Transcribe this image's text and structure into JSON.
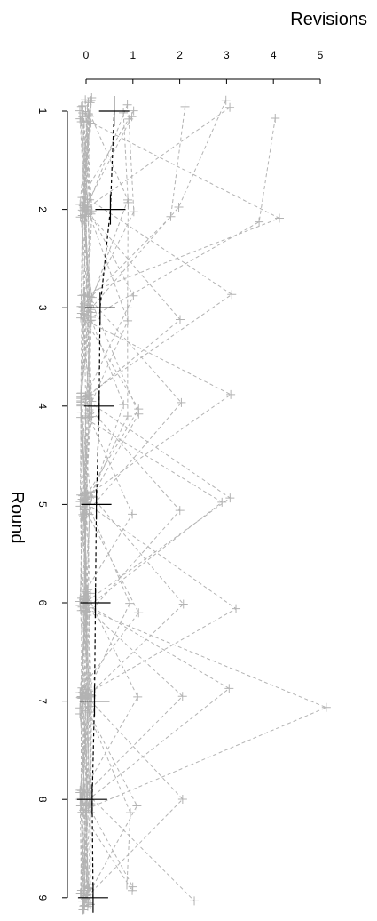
{
  "chart_data": {
    "type": "line",
    "orientation": "rotated",
    "xlabel": "Round",
    "ylabel": "Revisions",
    "x_ticks": [
      1,
      2,
      3,
      4,
      5,
      6,
      7,
      8,
      9
    ],
    "y_ticks": [
      0,
      1,
      2,
      3,
      4,
      5
    ],
    "xlim": [
      0.6,
      9.15
    ],
    "ylim": [
      0,
      5
    ],
    "grid": false,
    "mean_series": {
      "x": [
        1,
        2,
        3,
        4,
        5,
        6,
        7,
        8,
        9
      ],
      "values": [
        0.6,
        0.52,
        0.3,
        0.28,
        0.22,
        0.2,
        0.18,
        0.13,
        0.15
      ]
    },
    "individual_series": [
      {
        "values": [
          0.8,
          1.0,
          0.9,
          1.0,
          0.0,
          0.0,
          0.0,
          0.0,
          0.0
        ]
      },
      {
        "values": [
          1.0,
          0.0,
          0.0,
          0.9,
          0.0,
          2.1,
          0.0,
          0.0,
          1.0
        ]
      },
      {
        "values": [
          2.1,
          1.9,
          0.0,
          0.0,
          0.0,
          0.0,
          0.0,
          0.0,
          0.0
        ]
      },
      {
        "values": [
          3.0,
          2.1,
          0.0,
          0.0,
          0.0,
          0.0,
          0.0,
          0.0,
          0.0
        ]
      },
      {
        "values": [
          4.1,
          3.6,
          0.0,
          0.0,
          0.0,
          0.0,
          0.0,
          0.0,
          0.0
        ]
      },
      {
        "values": [
          3.2,
          0.0,
          1.0,
          0.0,
          0.0,
          0.0,
          0.0,
          0.0,
          0.0
        ]
      },
      {
        "values": [
          0.0,
          4.2,
          0.0,
          0.0,
          0.0,
          0.0,
          0.0,
          0.0,
          0.0
        ]
      },
      {
        "values": [
          0.0,
          0.0,
          3.2,
          0.0,
          0.0,
          0.0,
          0.0,
          0.0,
          0.0
        ]
      },
      {
        "values": [
          0.0,
          0.0,
          0.0,
          3.2,
          0.0,
          0.0,
          0.0,
          0.0,
          0.0
        ]
      },
      {
        "values": [
          0.0,
          0.0,
          0.0,
          0.0,
          2.8,
          0.0,
          0.0,
          0.0,
          0.0
        ]
      },
      {
        "values": [
          0.0,
          0.0,
          0.0,
          0.0,
          0.0,
          3.1,
          0.0,
          0.0,
          0.0
        ]
      },
      {
        "values": [
          0.0,
          0.0,
          0.0,
          0.0,
          0.0,
          0.0,
          5.2,
          0.0,
          0.0
        ]
      },
      {
        "values": [
          0.0,
          0.0,
          0.0,
          0.0,
          0.0,
          0.0,
          3.1,
          0.0,
          0.0
        ]
      },
      {
        "values": [
          0.0,
          0.0,
          0.0,
          0.0,
          0.0,
          0.0,
          0.0,
          2.0,
          0.0
        ]
      },
      {
        "values": [
          0.0,
          0.0,
          0.0,
          0.0,
          2.1,
          0.0,
          0.0,
          0.0,
          2.2
        ]
      },
      {
        "values": [
          0.9,
          0.0,
          0.0,
          1.0,
          0.0,
          0.0,
          0.0,
          1.0,
          0.0
        ]
      },
      {
        "values": [
          0.0,
          1.0,
          0.0,
          0.0,
          1.0,
          0.0,
          1.0,
          0.0,
          0.0
        ]
      },
      {
        "values": [
          0.0,
          0.0,
          1.0,
          0.0,
          0.0,
          1.0,
          0.0,
          0.0,
          1.0
        ]
      },
      {
        "values": [
          0.0,
          0.0,
          0.0,
          0.0,
          0.0,
          1.0,
          0.0,
          0.0,
          0.0
        ]
      },
      {
        "values": [
          0.0,
          0.0,
          0.0,
          2.0,
          0.0,
          0.0,
          0.0,
          0.0,
          0.0
        ]
      },
      {
        "values": [
          1.0,
          0.0,
          2.0,
          0.0,
          0.0,
          0.0,
          0.0,
          0.0,
          0.0
        ]
      },
      {
        "values": [
          0.0,
          0.0,
          0.0,
          0.0,
          3.0,
          0.0,
          0.0,
          0.0,
          0.0
        ]
      },
      {
        "values": [
          0.0,
          0.0,
          0.0,
          0.0,
          0.0,
          0.0,
          2.0,
          0.0,
          0.0
        ]
      },
      {
        "values": [
          0.0,
          0.0,
          0.0,
          1.0,
          0.0,
          0.0,
          0.0,
          0.0,
          0.0
        ]
      },
      {
        "values": [
          1.0,
          1.0,
          0.0,
          0.0,
          0.0,
          0.0,
          0.0,
          0.0,
          0.0
        ]
      },
      {
        "values": [
          0.0,
          0.0,
          0.0,
          0.0,
          0.0,
          0.0,
          0.0,
          1.0,
          1.0
        ]
      },
      {
        "values": [
          0.0,
          0.0,
          0.0,
          0.0,
          0.0,
          0.0,
          0.0,
          0.0,
          0.0
        ]
      },
      {
        "values": [
          0.0,
          0.0,
          0.0,
          0.0,
          0.0,
          0.0,
          0.0,
          0.0,
          0.0
        ]
      },
      {
        "values": [
          0.0,
          0.0,
          0.0,
          0.0,
          0.0,
          0.0,
          0.0,
          0.0,
          0.0
        ]
      },
      {
        "values": [
          0.0,
          0.0,
          0.0,
          0.0,
          0.0,
          0.0,
          0.0,
          0.0,
          0.0
        ]
      }
    ],
    "colors": {
      "individual": "#b3b3b3",
      "mean": "#000000",
      "axis": "#000000"
    }
  }
}
